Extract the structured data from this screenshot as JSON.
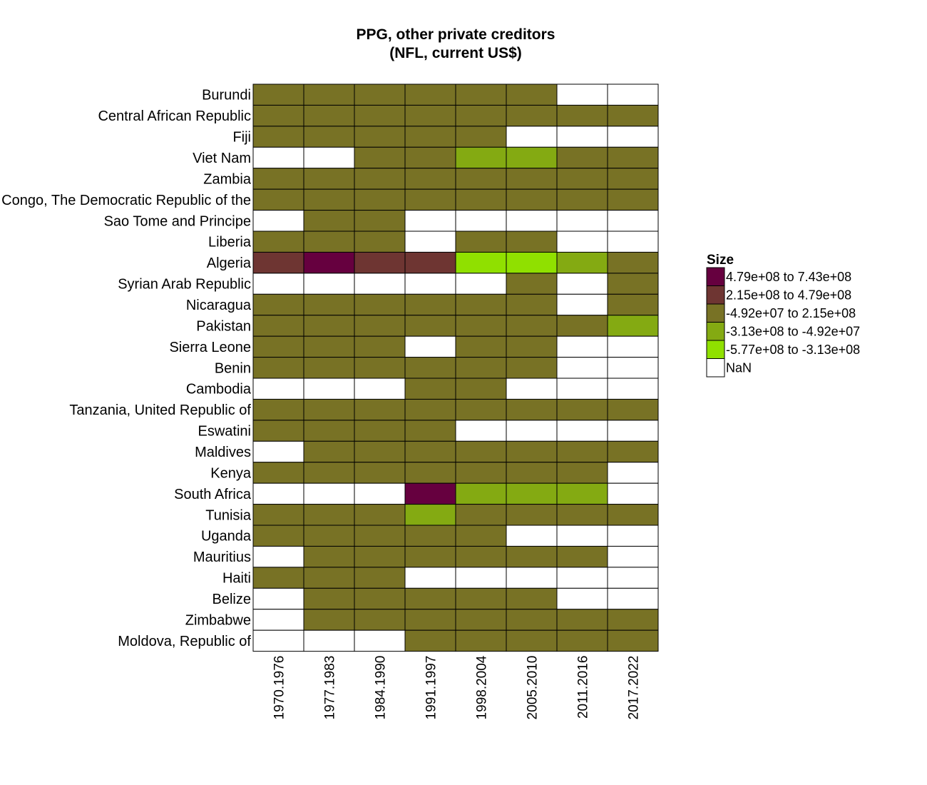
{
  "chart_data": {
    "type": "heatmap",
    "title": [
      "PPG, other private creditors",
      "(NFL, current US$)"
    ],
    "x": [
      "1970.1976",
      "1977.1983",
      "1984.1990",
      "1991.1997",
      "1998.2004",
      "2005.2010",
      "2011.2016",
      "2017.2022"
    ],
    "y": [
      "Burundi",
      "Central African Republic",
      "Fiji",
      "Viet Nam",
      "Zambia",
      "Congo, The Democratic Republic of the",
      "Sao Tome and Principe",
      "Liberia",
      "Algeria",
      "Syrian Arab Republic",
      "Nicaragua",
      "Pakistan",
      "Sierra Leone",
      "Benin",
      "Cambodia",
      "Tanzania, United Republic of",
      "Eswatini",
      "Maldives",
      "Kenya",
      "South Africa",
      "Tunisia",
      "Uganda",
      "Mauritius",
      "Haiti",
      "Belize",
      "Zimbabwe",
      "Moldova, Republic of"
    ],
    "legend": {
      "title": "Size",
      "position": "right",
      "bins": [
        {
          "label": "4.79e+08 to 7.43e+08",
          "color": "#66003f"
        },
        {
          "label": "2.15e+08 to 4.79e+08",
          "color": "#6e3532"
        },
        {
          "label": "-4.92e+07 to 2.15e+08",
          "color": "#787225"
        },
        {
          "label": "-3.13e+08 to -4.92e+07",
          "color": "#84aa12"
        },
        {
          "label": "-5.77e+08 to -3.13e+08",
          "color": "#90e000"
        },
        {
          "label": "NaN",
          "color": "#ffffff"
        }
      ]
    },
    "cells": [
      [
        2,
        2,
        2,
        2,
        2,
        2,
        null,
        null
      ],
      [
        2,
        2,
        2,
        2,
        2,
        2,
        2,
        2
      ],
      [
        2,
        2,
        2,
        2,
        2,
        null,
        null,
        null
      ],
      [
        null,
        null,
        2,
        2,
        3,
        3,
        2,
        2
      ],
      [
        2,
        2,
        2,
        2,
        2,
        2,
        2,
        2
      ],
      [
        2,
        2,
        2,
        2,
        2,
        2,
        2,
        2
      ],
      [
        null,
        2,
        2,
        null,
        null,
        null,
        null,
        null
      ],
      [
        2,
        2,
        2,
        null,
        2,
        2,
        null,
        null
      ],
      [
        1,
        0,
        1,
        1,
        4,
        4,
        3,
        2
      ],
      [
        null,
        null,
        null,
        null,
        null,
        2,
        null,
        2
      ],
      [
        2,
        2,
        2,
        2,
        2,
        2,
        null,
        2
      ],
      [
        2,
        2,
        2,
        2,
        2,
        2,
        2,
        3
      ],
      [
        2,
        2,
        2,
        null,
        2,
        2,
        null,
        null
      ],
      [
        2,
        2,
        2,
        2,
        2,
        2,
        null,
        null
      ],
      [
        null,
        null,
        null,
        2,
        2,
        null,
        null,
        null
      ],
      [
        2,
        2,
        2,
        2,
        2,
        2,
        2,
        2
      ],
      [
        2,
        2,
        2,
        2,
        null,
        null,
        null,
        null
      ],
      [
        null,
        2,
        2,
        2,
        2,
        2,
        2,
        2
      ],
      [
        2,
        2,
        2,
        2,
        2,
        2,
        2,
        null
      ],
      [
        null,
        null,
        null,
        0,
        3,
        3,
        3,
        null
      ],
      [
        2,
        2,
        2,
        3,
        2,
        2,
        2,
        2
      ],
      [
        2,
        2,
        2,
        2,
        2,
        null,
        null,
        null
      ],
      [
        null,
        2,
        2,
        2,
        2,
        2,
        2,
        null
      ],
      [
        2,
        2,
        2,
        null,
        null,
        null,
        null,
        null
      ],
      [
        null,
        2,
        2,
        2,
        2,
        2,
        null,
        null
      ],
      [
        null,
        2,
        2,
        2,
        2,
        2,
        2,
        2
      ],
      [
        null,
        null,
        null,
        2,
        2,
        2,
        2,
        2
      ]
    ]
  }
}
